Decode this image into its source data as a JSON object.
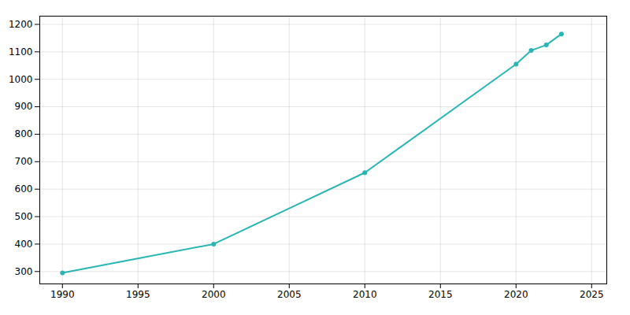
{
  "chart_data": {
    "type": "line",
    "x": [
      1990,
      2000,
      2010,
      2020,
      2021,
      2022,
      2023
    ],
    "values": [
      295,
      400,
      660,
      1055,
      1105,
      1125,
      1165
    ],
    "color": "#2ab5b5",
    "marker": "circle",
    "xlim": [
      1988.5,
      2026
    ],
    "ylim": [
      255,
      1230
    ],
    "xticks": [
      1990,
      1995,
      2000,
      2005,
      2010,
      2015,
      2020,
      2025
    ],
    "yticks": [
      300,
      400,
      500,
      600,
      700,
      800,
      900,
      1000,
      1100,
      1200
    ],
    "grid": true
  }
}
